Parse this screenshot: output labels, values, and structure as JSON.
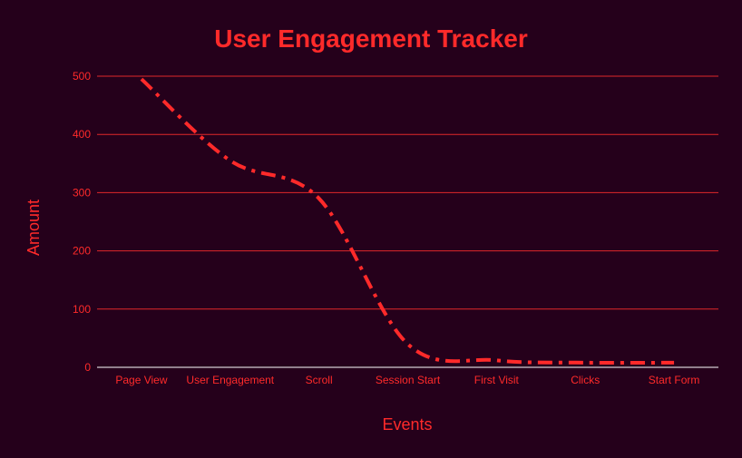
{
  "chart_data": {
    "type": "line",
    "title": "User Engagement Tracker",
    "xlabel": "Events",
    "ylabel": "Amount",
    "categories": [
      "Page View",
      "User Engagement",
      "Scroll",
      "Session Start",
      "First Visit",
      "Clicks",
      "Start Form"
    ],
    "series": [
      {
        "values": [
          495,
          355,
          290,
          40,
          12,
          8,
          8
        ]
      }
    ],
    "ylim": [
      0,
      500
    ],
    "yticks": [
      "0",
      "100",
      "200",
      "300",
      "400",
      "500"
    ],
    "grid": true,
    "legend": "none",
    "line_style": "dash-dot",
    "line_smoothing": "curved"
  },
  "colors": {
    "background": "#25001b",
    "accent": "#ff2a2a",
    "grid": "#e0272b",
    "baseline": "#ffffff"
  }
}
